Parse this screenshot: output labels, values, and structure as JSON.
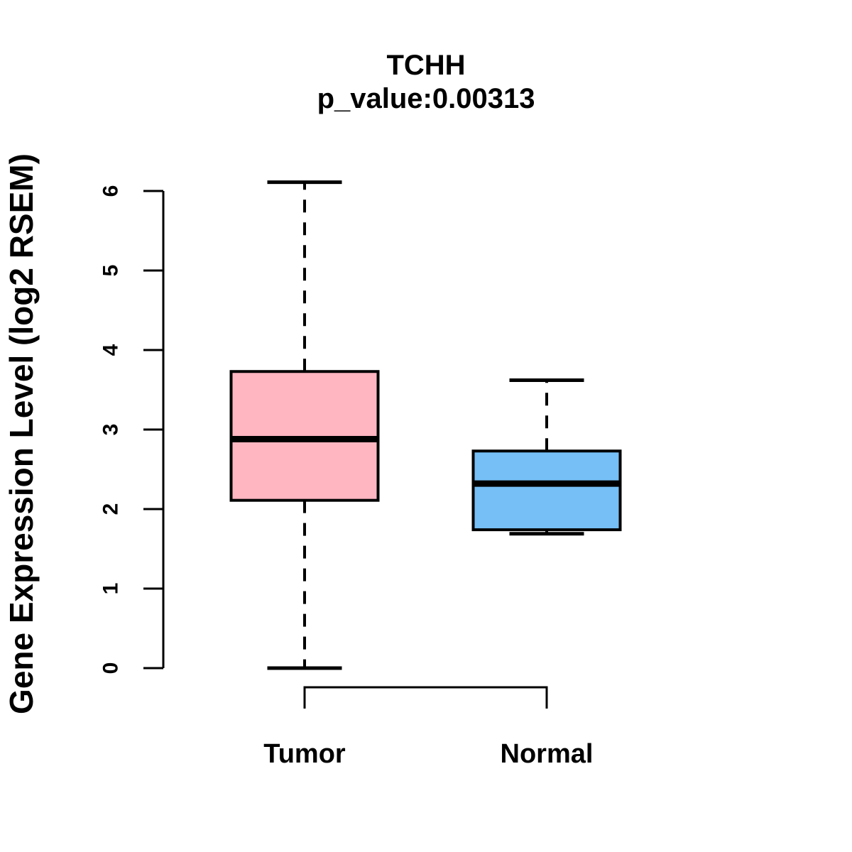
{
  "chart_data": {
    "type": "boxplot",
    "title": "TCHH",
    "subtitle": "p_value:0.00313",
    "ylabel": "Gene Expression Level (log2 RSEM)",
    "xlabel": "",
    "categories": [
      "Tumor",
      "Normal"
    ],
    "series": [
      {
        "name": "Tumor",
        "color": "#FFB6C1",
        "min": 0.0,
        "q1": 2.11,
        "median": 2.88,
        "q3": 3.73,
        "max": 6.11
      },
      {
        "name": "Normal",
        "color": "#75BFF6",
        "min": 1.69,
        "q1": 1.74,
        "median": 2.32,
        "q3": 2.73,
        "max": 3.62
      }
    ],
    "ylim": [
      0,
      6
    ],
    "yticks": [
      0,
      1,
      2,
      3,
      4,
      5,
      6
    ],
    "grid": false,
    "legend": "none",
    "line_color": "#000000",
    "whisker_style": "dashed"
  }
}
